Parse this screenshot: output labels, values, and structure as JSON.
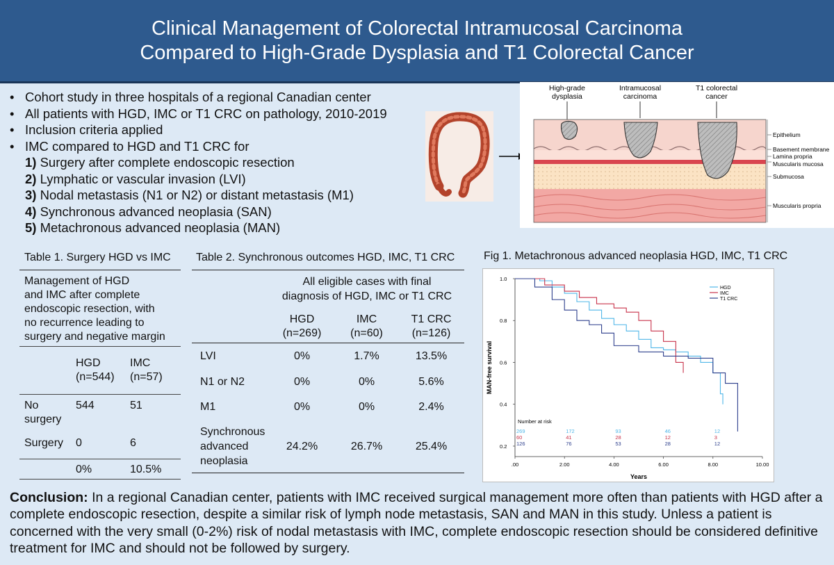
{
  "header": {
    "title_line1": "Clinical Management of Colorectal Intramucosal Carcinoma",
    "title_line2": "Compared to High-Grade Dysplasia and T1 Colorectal Cancer"
  },
  "bullets": [
    "Cohort study in three hospitals of a regional Canadian center",
    "All patients with HGD, IMC or T1 CRC on pathology, 2010-2019",
    "Inclusion criteria applied",
    "IMC compared to HGD and T1 CRC for"
  ],
  "outcomes": [
    {
      "num": "1)",
      "text": " Surgery after complete endoscopic resection"
    },
    {
      "num": "2)",
      "text": " Lymphatic or vascular invasion (LVI)"
    },
    {
      "num": "3)",
      "text": " Nodal metastasis (N1 or N2) or distant metastasis (M1)"
    },
    {
      "num": "4)",
      "text": " Synchronous advanced neoplasia (SAN)"
    },
    {
      "num": "5)",
      "text": " Metachronous advanced neoplasia (MAN)"
    }
  ],
  "diagram": {
    "top_labels": [
      {
        "l1": "High-grade",
        "l2": "dysplasia"
      },
      {
        "l1": "Intramucosal",
        "l2": "carcinoma"
      },
      {
        "l1": "T1 colorectal",
        "l2": "cancer"
      }
    ],
    "layer_labels": [
      "Epithelium",
      "Basement membrane",
      "Lamina propria",
      "Muscularis mucosa",
      "Submucosa",
      "Muscularis propria"
    ]
  },
  "table1": {
    "caption": "Table 1. Surgery HGD vs IMC",
    "management": [
      "Management of HGD",
      "and IMC after complete",
      "endoscopic resection, with",
      "no recurrence leading to",
      "surgery and negative margin"
    ],
    "head": [
      [
        "",
        ""
      ],
      [
        "HGD",
        "(n=544)"
      ],
      [
        "IMC",
        "(n=57)"
      ]
    ],
    "rows": [
      {
        "label1": "No",
        "label2": "surgery",
        "hgd": "544",
        "imc": "51"
      },
      {
        "label1": "Surgery",
        "label2": "",
        "hgd": "0",
        "imc": "6"
      }
    ],
    "total": {
      "hgd": "0%",
      "imc": "10.5%"
    }
  },
  "table2": {
    "caption": "Table 2. Synchronous outcomes HGD, IMC, T1 CRC",
    "span_header": [
      "All eligible cases with final",
      "diagnosis of HGD, IMC or T1 CRC"
    ],
    "cols": [
      [
        "HGD",
        "(n=269)"
      ],
      [
        "IMC",
        "(n=60)"
      ],
      [
        "T1 CRC",
        "(n=126)"
      ]
    ],
    "rows": [
      {
        "label": [
          "LVI"
        ],
        "v": [
          "0%",
          "1.7%",
          "13.5%"
        ]
      },
      {
        "label": [
          "N1 or N2"
        ],
        "v": [
          "0%",
          "0%",
          "5.6%"
        ]
      },
      {
        "label": [
          "M1"
        ],
        "v": [
          "0%",
          "0%",
          "2.4%"
        ]
      },
      {
        "label": [
          "Synchronous",
          "advanced",
          "neoplasia"
        ],
        "v": [
          "24.2%",
          "26.7%",
          "25.4%"
        ]
      }
    ]
  },
  "figure": {
    "caption": "Fig 1. Metachronous advanced neoplasia HGD, IMC, T1 CRC",
    "ylabel": "MAN-free survival",
    "xlabel": "Years",
    "y_ticks": [
      "1.0",
      "0.8",
      "0.6",
      "0.4",
      "0.2"
    ],
    "x_ticks": [
      ".00",
      "2.00",
      "4.00",
      "6.00",
      "8.00",
      "10.00"
    ],
    "legend": [
      "HGD",
      "IMC",
      "T1 CRC"
    ],
    "colors": {
      "HGD": "#4fb6e8",
      "IMC": "#c8324a",
      "T1 CRC": "#2c3e8c"
    },
    "risk_title": "Number at risk",
    "risk": [
      [
        "269",
        "172",
        "93",
        "46",
        "12"
      ],
      [
        "60",
        "41",
        "28",
        "12",
        "3"
      ],
      [
        "126",
        "76",
        "53",
        "28",
        "12"
      ]
    ]
  },
  "chart_data": {
    "type": "line",
    "xlabel": "Years",
    "ylabel": "MAN-free survival",
    "xlim": [
      0,
      10
    ],
    "ylim": [
      0.15,
      1.0
    ],
    "series": [
      {
        "name": "HGD",
        "x": [
          0,
          1,
          1.5,
          2,
          2.5,
          3,
          3.5,
          4,
          4.5,
          5,
          5.5,
          6,
          6.5,
          7,
          7.5,
          8,
          8.3,
          8.4
        ],
        "y": [
          1.0,
          0.99,
          0.96,
          0.93,
          0.89,
          0.85,
          0.81,
          0.78,
          0.75,
          0.71,
          0.67,
          0.66,
          0.65,
          0.63,
          0.6,
          0.55,
          0.45,
          0.4
        ]
      },
      {
        "name": "IMC",
        "x": [
          0,
          1.2,
          2,
          2.6,
          3.3,
          4,
          4.5,
          5,
          5.5,
          6,
          6.5,
          6.8
        ],
        "y": [
          1.0,
          0.97,
          0.94,
          0.91,
          0.88,
          0.86,
          0.84,
          0.8,
          0.75,
          0.7,
          0.6,
          0.55
        ]
      },
      {
        "name": "T1 CRC",
        "x": [
          0,
          0.8,
          1.5,
          2,
          2.5,
          3,
          3.5,
          4,
          5,
          6,
          7,
          8,
          8.5,
          9
        ],
        "y": [
          1.0,
          0.96,
          0.9,
          0.85,
          0.8,
          0.78,
          0.74,
          0.68,
          0.65,
          0.63,
          0.62,
          0.55,
          0.5,
          0.27
        ]
      }
    ]
  },
  "conclusion": {
    "label": "Conclusion:",
    "text": " In a regional Canadian center, patients with IMC received surgical management more often than patients with HGD after a complete endoscopic resection, despite a similar risk of lymph node metastasis, SAN and MAN in this study. Unless a patient is concerned with the very small (0-2%) risk of nodal metastasis with IMC, complete endoscopic resection should be considered definitive treatment for IMC and should not be followed by surgery."
  }
}
